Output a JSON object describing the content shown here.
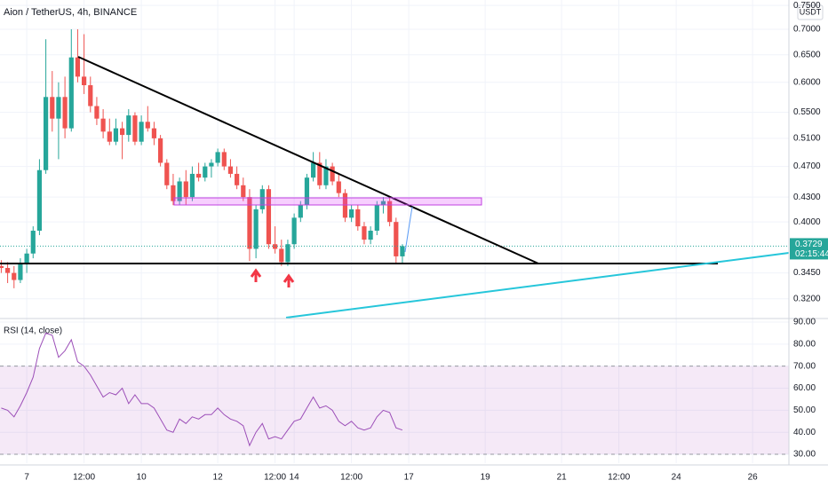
{
  "chart_data": [
    {
      "type": "candlestick",
      "title": "Aion / TetherUS, 4h, BINANCE",
      "currency": "USDT",
      "countdown": "02:15:44",
      "x": [
        6.333,
        6.5,
        6.667,
        6.833,
        7,
        7.167,
        7.333,
        7.5,
        7.667,
        7.833,
        8,
        8.167,
        8.333,
        8.5,
        8.667,
        8.833,
        9,
        9.167,
        9.333,
        9.5,
        9.667,
        9.833,
        10,
        10.167,
        10.333,
        10.5,
        10.667,
        10.833,
        11,
        11.167,
        11.333,
        11.5,
        11.667,
        11.833,
        12,
        12.167,
        12.333,
        12.5,
        12.667,
        12.833,
        13,
        13.167,
        13.333,
        13.5,
        13.667,
        13.833,
        14,
        14.167,
        14.333,
        14.5,
        14.667,
        14.833,
        15,
        15.167,
        15.333,
        15.5,
        15.667,
        15.833,
        16,
        16.167,
        16.333,
        16.5,
        16.667,
        16.833
      ],
      "open": [
        0.352,
        0.35,
        0.345,
        0.338,
        0.355,
        0.365,
        0.39,
        0.465,
        0.575,
        0.54,
        0.575,
        0.525,
        0.645,
        0.61,
        0.595,
        0.56,
        0.54,
        0.52,
        0.505,
        0.525,
        0.515,
        0.545,
        0.505,
        0.535,
        0.525,
        0.51,
        0.475,
        0.445,
        0.425,
        0.45,
        0.43,
        0.46,
        0.455,
        0.47,
        0.475,
        0.49,
        0.47,
        0.46,
        0.445,
        0.43,
        0.37,
        0.415,
        0.44,
        0.375,
        0.37,
        0.356,
        0.375,
        0.405,
        0.42,
        0.455,
        0.475,
        0.445,
        0.47,
        0.45,
        0.435,
        0.405,
        0.415,
        0.395,
        0.38,
        0.39,
        0.42,
        0.425,
        0.4,
        0.362
      ],
      "high": [
        0.358,
        0.356,
        0.352,
        0.36,
        0.37,
        0.395,
        0.48,
        0.68,
        0.62,
        0.6,
        0.61,
        0.7,
        0.7,
        0.69,
        0.61,
        0.575,
        0.555,
        0.54,
        0.54,
        0.535,
        0.555,
        0.55,
        0.545,
        0.56,
        0.535,
        0.515,
        0.48,
        0.46,
        0.455,
        0.465,
        0.47,
        0.475,
        0.475,
        0.48,
        0.495,
        0.495,
        0.48,
        0.47,
        0.455,
        0.44,
        0.42,
        0.445,
        0.445,
        0.395,
        0.38,
        0.38,
        0.41,
        0.425,
        0.46,
        0.49,
        0.49,
        0.48,
        0.475,
        0.46,
        0.44,
        0.42,
        0.42,
        0.4,
        0.395,
        0.425,
        0.43,
        0.43,
        0.405,
        0.375
      ],
      "low": [
        0.345,
        0.335,
        0.33,
        0.335,
        0.345,
        0.36,
        0.385,
        0.46,
        0.52,
        0.48,
        0.51,
        0.52,
        0.6,
        0.58,
        0.55,
        0.53,
        0.51,
        0.5,
        0.5,
        0.48,
        0.505,
        0.5,
        0.5,
        0.52,
        0.5,
        0.47,
        0.44,
        0.42,
        0.42,
        0.42,
        0.425,
        0.45,
        0.45,
        0.455,
        0.47,
        0.465,
        0.455,
        0.44,
        0.425,
        0.357,
        0.36,
        0.41,
        0.37,
        0.365,
        0.352,
        0.352,
        0.37,
        0.4,
        0.415,
        0.45,
        0.44,
        0.44,
        0.445,
        0.43,
        0.4,
        0.4,
        0.39,
        0.375,
        0.375,
        0.385,
        0.41,
        0.395,
        0.355,
        0.355
      ],
      "close": [
        0.35,
        0.345,
        0.338,
        0.355,
        0.365,
        0.39,
        0.465,
        0.575,
        0.54,
        0.575,
        0.525,
        0.645,
        0.61,
        0.595,
        0.56,
        0.54,
        0.52,
        0.505,
        0.525,
        0.515,
        0.545,
        0.505,
        0.535,
        0.525,
        0.51,
        0.475,
        0.445,
        0.425,
        0.45,
        0.43,
        0.46,
        0.455,
        0.47,
        0.475,
        0.49,
        0.47,
        0.46,
        0.445,
        0.43,
        0.37,
        0.415,
        0.44,
        0.375,
        0.37,
        0.356,
        0.375,
        0.405,
        0.42,
        0.455,
        0.475,
        0.445,
        0.47,
        0.45,
        0.435,
        0.405,
        0.415,
        0.395,
        0.38,
        0.39,
        0.42,
        0.425,
        0.4,
        0.362,
        0.3729
      ],
      "up_color": "#26a69a",
      "down_color": "#ef5350",
      "log_scale": true,
      "grid": true,
      "xlim": [
        6.3,
        26.95
      ],
      "ylim": [
        0.303,
        0.762
      ],
      "yticks": [
        {
          "value": 0.75,
          "label": "0.7500"
        },
        {
          "value": 0.7,
          "label": "0.7000"
        },
        {
          "value": 0.65,
          "label": "0.6500"
        },
        {
          "value": 0.6,
          "label": "0.6000"
        },
        {
          "value": 0.55,
          "label": "0.5500"
        },
        {
          "value": 0.51,
          "label": "0.5100"
        },
        {
          "value": 0.47,
          "label": "0.4700"
        },
        {
          "value": 0.43,
          "label": "0.4300"
        },
        {
          "value": 0.4,
          "label": "0.4000"
        },
        {
          "value": 0.345,
          "label": "0.3450"
        },
        {
          "value": 0.32,
          "label": "0.3200"
        }
      ]
    },
    {
      "type": "line",
      "x": [
        6.333,
        6.5,
        6.667,
        6.833,
        7,
        7.167,
        7.333,
        7.5,
        7.667,
        7.833,
        8,
        8.167,
        8.333,
        8.5,
        8.667,
        8.833,
        9,
        9.167,
        9.333,
        9.5,
        9.667,
        9.833,
        10,
        10.167,
        10.333,
        10.5,
        10.667,
        10.833,
        11,
        11.167,
        11.333,
        11.5,
        11.667,
        11.833,
        12,
        12.167,
        12.333,
        12.5,
        12.667,
        12.833,
        13,
        13.167,
        13.333,
        13.5,
        13.667,
        13.833,
        14,
        14.167,
        14.333,
        14.5,
        14.667,
        14.833,
        15,
        15.167,
        15.333,
        15.5,
        15.667,
        15.833,
        16,
        16.167,
        16.333,
        16.5,
        16.667,
        16.833
      ],
      "series": [
        {
          "name": "RSI (14, close)",
          "color": "#9c4fb8",
          "values": [
            51,
            50,
            47,
            52,
            58,
            65,
            78,
            85,
            84,
            74,
            77,
            82,
            72,
            70,
            66,
            61,
            56,
            58,
            57,
            60,
            53,
            57,
            53,
            53,
            51,
            46,
            41,
            40,
            46,
            44,
            47,
            46,
            48,
            48,
            51,
            48,
            46,
            45,
            43,
            34,
            40,
            44,
            37,
            38,
            37,
            41,
            45,
            46,
            51,
            56,
            51,
            52,
            50,
            45,
            43,
            45,
            42,
            41,
            42,
            47,
            50,
            49,
            42,
            41
          ]
        }
      ],
      "band": [
        30,
        70
      ],
      "band_color": "#9c27b0",
      "grid": true,
      "xlim": [
        6.3,
        26.95
      ],
      "ylim": [
        26,
        91.2
      ],
      "xticks": [
        7,
        {
          "value": 8.5,
          "label": "12:00"
        },
        10,
        12,
        {
          "value": 13.5,
          "label": "12:00"
        },
        14,
        {
          "value": 15.5,
          "label": "12:00"
        },
        17,
        19,
        21,
        {
          "value": 22.5,
          "label": "12:00"
        },
        24,
        26
      ],
      "yticks": [
        {
          "value": 90,
          "label": "90.00"
        },
        {
          "value": 80,
          "label": "80.00"
        },
        {
          "value": 70,
          "label": "70.00"
        },
        {
          "value": 60,
          "label": "60.00"
        },
        {
          "value": 50,
          "label": "50.00"
        },
        {
          "value": 40,
          "label": "40.00"
        },
        {
          "value": 30,
          "label": "30.00"
        }
      ]
    }
  ]
}
